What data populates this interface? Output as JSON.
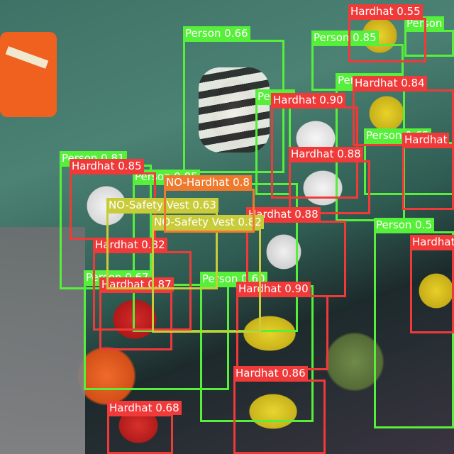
{
  "colors": {
    "person": "#56f03a",
    "hardhat": "#f03a3a",
    "no_safety_vest": "#c9cc3a",
    "no_hardhat": "#ef7a2e"
  },
  "detections": [
    {
      "cls": "person",
      "label": "Person 0.66"
    },
    {
      "cls": "person",
      "label": "Person 0.85"
    },
    {
      "cls": "person",
      "label": "Person"
    },
    {
      "cls": "person",
      "label": "Person 0.78"
    },
    {
      "cls": "person",
      "label": "Person"
    },
    {
      "cls": "person",
      "label": "Person 0.65"
    },
    {
      "cls": "person",
      "label": "Person 0.81"
    },
    {
      "cls": "person",
      "label": "Person 0.85"
    },
    {
      "cls": "person",
      "label": "Person 0.67"
    },
    {
      "cls": "person",
      "label": "Person 0.60"
    },
    {
      "cls": "person",
      "label": "Person 0.5"
    },
    {
      "cls": "hardhat",
      "label": "Hardhat 0.55"
    },
    {
      "cls": "hardhat",
      "label": "Hardhat 0.84"
    },
    {
      "cls": "hardhat",
      "label": "Hardhat 0.90"
    },
    {
      "cls": "hardhat",
      "label": "Hardhat 0.88"
    },
    {
      "cls": "hardhat",
      "label": "Hardhat"
    },
    {
      "cls": "hardhat",
      "label": "Hardhat 0.85"
    },
    {
      "cls": "hardhat",
      "label": "Hardhat 0.88"
    },
    {
      "cls": "hardhat",
      "label": "Hardhat 0.82"
    },
    {
      "cls": "hardhat",
      "label": "Hardhat 0.87"
    },
    {
      "cls": "hardhat",
      "label": "Hardhat 0.90"
    },
    {
      "cls": "hardhat",
      "label": "Hardhat"
    },
    {
      "cls": "hardhat",
      "label": "Hardhat 0.86"
    },
    {
      "cls": "hardhat",
      "label": "Hardhat 0.68"
    },
    {
      "cls": "no_safety_vest",
      "label": "NO-Safety Vest 0.63"
    },
    {
      "cls": "no_safety_vest",
      "label": "NO-Safety Vest 0.82"
    },
    {
      "cls": "no_hardhat",
      "label": "NO-Hardhat 0.8"
    }
  ]
}
